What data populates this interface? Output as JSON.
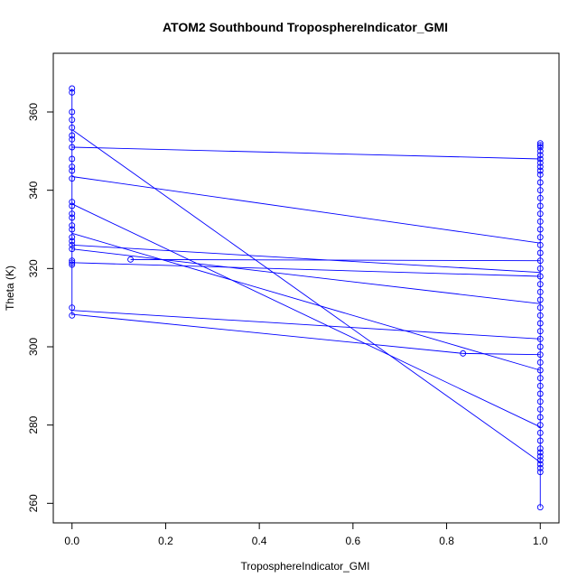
{
  "chart_data": {
    "type": "scatter",
    "title": "ATOM2 Southbound TroposphereIndicator_GMI",
    "xlabel": "TroposphereIndicator_GMI",
    "ylabel": "Theta (K)",
    "xlim": [
      -0.04,
      1.04
    ],
    "ylim": [
      255,
      375
    ],
    "xticks": [
      0.0,
      0.2,
      0.4,
      0.6,
      0.8,
      1.0
    ],
    "xtick_labels": [
      "0.0",
      "0.2",
      "0.4",
      "0.6",
      "0.8",
      "1.0"
    ],
    "yticks": [
      260,
      280,
      300,
      320,
      340,
      360
    ],
    "ytick_labels": [
      "260",
      "280",
      "300",
      "320",
      "340",
      "360"
    ],
    "grid": false,
    "legend": "none",
    "color": "#0000ff",
    "points_x0": [
      366,
      365,
      360,
      358,
      356,
      354,
      353,
      351,
      348,
      346,
      345,
      343,
      337,
      336,
      334,
      333,
      331,
      330,
      328,
      327,
      326,
      325,
      322,
      321.5,
      321,
      310,
      308
    ],
    "points_x1": [
      352,
      351.5,
      351,
      350,
      349,
      348,
      347,
      346,
      345,
      344,
      342,
      340,
      338,
      336,
      334,
      332,
      330,
      328,
      326,
      324,
      322,
      320,
      318,
      316,
      314,
      312,
      310,
      308,
      306,
      304,
      302,
      300,
      298,
      296,
      294,
      292,
      290,
      288,
      286,
      284,
      282,
      280,
      278,
      276,
      274,
      273,
      272,
      271,
      270,
      269,
      268,
      259
    ],
    "points_other": [
      {
        "x": 0.125,
        "y": 322.3
      },
      {
        "x": 0.835,
        "y": 298.3
      }
    ],
    "segments": [
      {
        "x1": 0.0,
        "y1": 355.5,
        "x2": 1.0,
        "y2": 270.5
      },
      {
        "x1": 0.0,
        "y1": 351.0,
        "x2": 1.0,
        "y2": 348.0
      },
      {
        "x1": 0.0,
        "y1": 343.5,
        "x2": 1.0,
        "y2": 326.5
      },
      {
        "x1": 0.0,
        "y1": 336.5,
        "x2": 1.0,
        "y2": 279.5
      },
      {
        "x1": 0.0,
        "y1": 329.0,
        "x2": 1.0,
        "y2": 294.0
      },
      {
        "x1": 0.0,
        "y1": 326.0,
        "x2": 1.0,
        "y2": 319.0
      },
      {
        "x1": 0.0,
        "y1": 325.0,
        "x2": 1.0,
        "y2": 311.0
      },
      {
        "x1": 0.125,
        "y1": 322.3,
        "x2": 1.0,
        "y2": 322.0
      },
      {
        "x1": 0.0,
        "y1": 321.5,
        "x2": 1.0,
        "y2": 318.0
      },
      {
        "x1": 0.0,
        "y1": 309.3,
        "x2": 1.0,
        "y2": 302.0
      },
      {
        "x1": 0.0,
        "y1": 308.3,
        "x2": 0.835,
        "y2": 298.3
      },
      {
        "x1": 0.835,
        "y1": 298.3,
        "x2": 1.0,
        "y2": 298.0
      },
      {
        "x1": 0.0,
        "y1": 308.0,
        "x2": 0.0,
        "y2": 366.0
      },
      {
        "x1": 1.0,
        "y1": 259.0,
        "x2": 1.0,
        "y2": 352.0
      }
    ]
  }
}
